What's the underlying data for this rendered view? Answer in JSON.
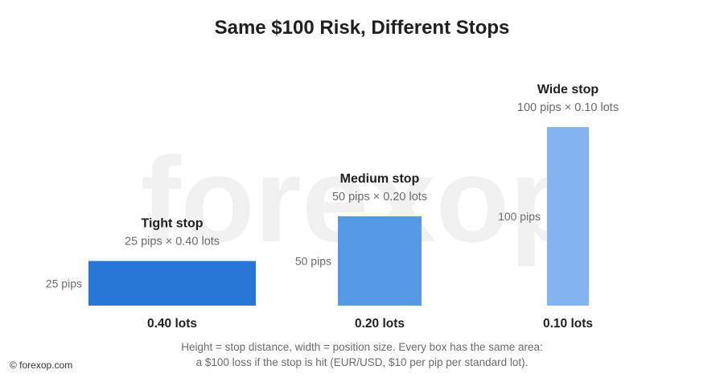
{
  "chart_data": {
    "type": "bar",
    "title": "Same $100 Risk, Different Stops",
    "x_encoding": "position size (lots)",
    "y_encoding": "stop distance (pips)",
    "categories": [
      "Tight stop",
      "Medium stop",
      "Wide stop"
    ],
    "boxes": [
      {
        "label": "Tight stop",
        "subtitle": "25 pips × 0.40 lots",
        "pips": 25,
        "lots": 0.4,
        "height_label": "25 pips",
        "lots_label": "0.40 lots",
        "color": "#2777d6"
      },
      {
        "label": "Medium stop",
        "subtitle": "50 pips × 0.20 lots",
        "pips": 50,
        "lots": 0.2,
        "height_label": "50 pips",
        "lots_label": "0.20 lots",
        "color": "#5598e3"
      },
      {
        "label": "Wide stop",
        "subtitle": "100 pips × 0.10 lots",
        "pips": 100,
        "lots": 0.1,
        "height_label": "100 pips",
        "lots_label": "0.10 lots",
        "color": "#83b4ef"
      }
    ],
    "caption_lines": [
      "Height = stop distance, width = position size. Every box has the same area:",
      "a $100 loss if the stop is hit (EUR/USD, $10 per pip per standard lot)."
    ],
    "grid": false,
    "legend": "none"
  },
  "watermark": "forexop",
  "copyright": "© forexop.com"
}
